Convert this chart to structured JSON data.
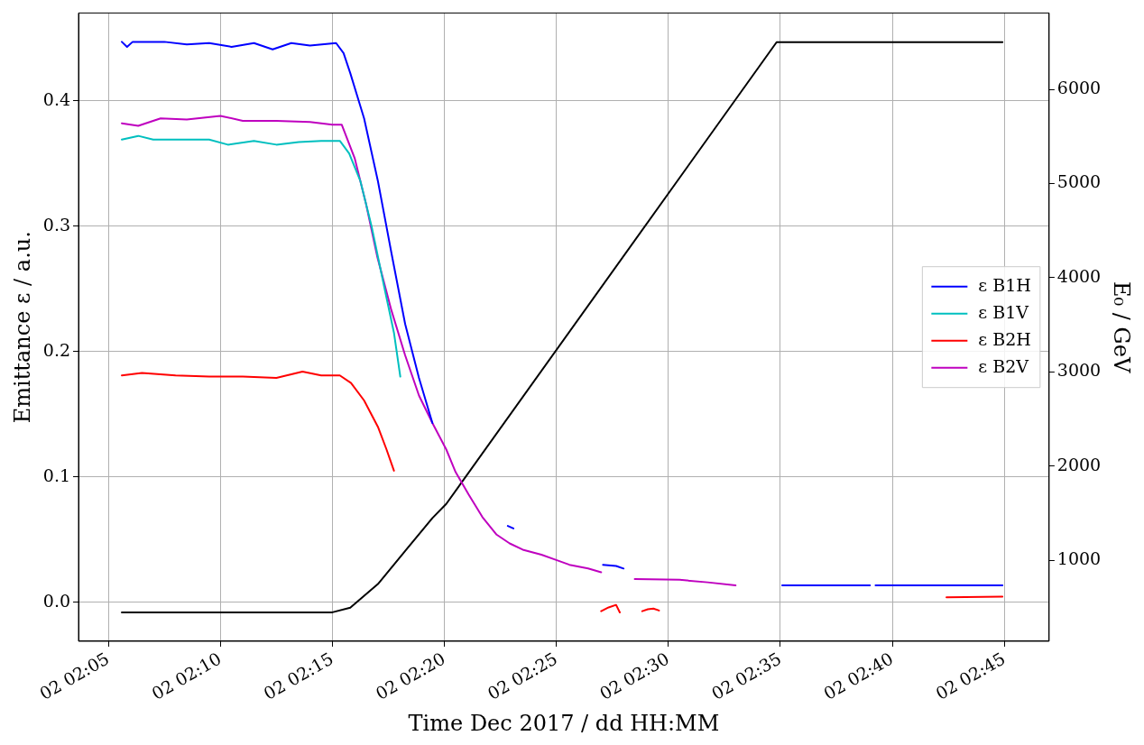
{
  "chart_data": {
    "type": "line",
    "xlabel": "Time Dec 2017 / dd HH:MM",
    "ylabel": "Emittance ε / a.u.",
    "y2label": "E₀ / GeV",
    "xlim": [
      "2017-12-02T02:03:40",
      "2017-12-02T02:47:00"
    ],
    "xticks": [
      {
        "value": "2017-12-02T02:05",
        "label": "02 02:05"
      },
      {
        "value": "2017-12-02T02:10",
        "label": "02 02:10"
      },
      {
        "value": "2017-12-02T02:15",
        "label": "02 02:15"
      },
      {
        "value": "2017-12-02T02:20",
        "label": "02 02:20"
      },
      {
        "value": "2017-12-02T02:25",
        "label": "02 02:25"
      },
      {
        "value": "2017-12-02T02:30",
        "label": "02 02:30"
      },
      {
        "value": "2017-12-02T02:35",
        "label": "02 02:35"
      },
      {
        "value": "2017-12-02T02:40",
        "label": "02 02:40"
      },
      {
        "value": "2017-12-02T02:45",
        "label": "02 02:45"
      }
    ],
    "ylim": [
      -0.031,
      0.47
    ],
    "yticks": [
      {
        "value": 0,
        "label": "0.0"
      },
      {
        "value": 0.1,
        "label": "0.1"
      },
      {
        "value": 0.2,
        "label": "0.2"
      },
      {
        "value": 0.3,
        "label": "0.3"
      },
      {
        "value": 0.4,
        "label": "0.4"
      }
    ],
    "y2lim": [
      143,
      6810
    ],
    "y2ticks": [
      1000,
      2000,
      3000,
      4000,
      5000,
      6000
    ],
    "grid": true,
    "legend": "right",
    "marker": "none",
    "series": [
      {
        "name": "ε B1H",
        "color": "#0000ff",
        "x": [
          "2017-12-02T02:05:36",
          "2017-12-02T02:05:50",
          "2017-12-02T02:06:05",
          "2017-12-02T02:07:30",
          "2017-12-02T02:08:30",
          "2017-12-02T02:09:30",
          "2017-12-02T02:10:30",
          "2017-12-02T02:11:30",
          "2017-12-02T02:12:20",
          "2017-12-02T02:13:10",
          "2017-12-02T02:14:00",
          "2017-12-02T02:15:10",
          "2017-12-02T02:15:30",
          "2017-12-02T02:15:48",
          "2017-12-02T02:16:25",
          "2017-12-02T02:17:02",
          "2017-12-02T02:17:38",
          "2017-12-02T02:18:15",
          "2017-12-02T02:18:52",
          "2017-12-02T02:19:28",
          "2017-12-02T02:21:00",
          "2017-12-02T02:22:50",
          "2017-12-02T02:23:05",
          "2017-12-02T02:25:00",
          "2017-12-02T02:27:05",
          "2017-12-02T02:27:40",
          "2017-12-02T02:28:00",
          "2017-12-02T02:31:00",
          "2017-12-02T02:35:05",
          "2017-12-02T02:39:00",
          "2017-12-02T02:39:05",
          "2017-12-02T02:39:15",
          "2017-12-02T02:44:55"
        ],
        "values": [
          0.447,
          0.443,
          0.447,
          0.447,
          0.445,
          0.446,
          0.443,
          0.446,
          0.441,
          0.446,
          0.444,
          0.446,
          0.438,
          0.422,
          0.386,
          0.336,
          0.279,
          0.222,
          0.179,
          0.143,
          null,
          0.061,
          0.059,
          null,
          0.03,
          0.029,
          0.027,
          null,
          0.0135,
          0.0135,
          null,
          0.0135,
          0.0135
        ]
      },
      {
        "name": "ε B1V",
        "color": "#00bfbf",
        "x": [
          "2017-12-02T02:05:36",
          "2017-12-02T02:06:20",
          "2017-12-02T02:07:00",
          "2017-12-02T02:08:00",
          "2017-12-02T02:09:30",
          "2017-12-02T02:10:20",
          "2017-12-02T02:11:30",
          "2017-12-02T02:12:30",
          "2017-12-02T02:13:30",
          "2017-12-02T02:14:30",
          "2017-12-02T02:15:20",
          "2017-12-02T02:15:45",
          "2017-12-02T02:16:15",
          "2017-12-02T02:16:45",
          "2017-12-02T02:17:20",
          "2017-12-02T02:17:45",
          "2017-12-02T02:18:02"
        ],
        "values": [
          0.369,
          0.372,
          0.369,
          0.369,
          0.369,
          0.365,
          0.368,
          0.365,
          0.367,
          0.368,
          0.368,
          0.358,
          0.336,
          0.3,
          0.25,
          0.215,
          0.18
        ]
      },
      {
        "name": "ε B2H",
        "color": "#ff0000",
        "x": [
          "2017-12-02T02:05:36",
          "2017-12-02T02:06:30",
          "2017-12-02T02:08:00",
          "2017-12-02T02:09:30",
          "2017-12-02T02:11:00",
          "2017-12-02T02:12:30",
          "2017-12-02T02:13:40",
          "2017-12-02T02:14:30",
          "2017-12-02T02:15:20",
          "2017-12-02T02:15:50",
          "2017-12-02T02:16:25",
          "2017-12-02T02:17:02",
          "2017-12-02T02:17:25",
          "2017-12-02T02:17:45",
          "2017-12-02T02:22:00",
          "2017-12-02T02:27:00",
          "2017-12-02T02:27:20",
          "2017-12-02T02:27:40",
          "2017-12-02T02:27:50",
          "2017-12-02T02:28:20",
          "2017-12-02T02:28:50",
          "2017-12-02T02:29:05",
          "2017-12-02T02:29:20",
          "2017-12-02T02:29:35",
          "2017-12-02T02:35:00",
          "2017-12-02T02:42:25",
          "2017-12-02T02:44:55"
        ],
        "values": [
          0.181,
          0.183,
          0.181,
          0.18,
          0.18,
          0.179,
          0.184,
          0.181,
          0.181,
          0.175,
          0.161,
          0.14,
          0.122,
          0.105,
          null,
          -0.007,
          -0.004,
          -0.002,
          -0.008,
          null,
          -0.007,
          -0.0055,
          -0.005,
          -0.0065,
          null,
          0.004,
          0.0045
        ]
      },
      {
        "name": "ε B2V",
        "color": "#bf00bf",
        "x": [
          "2017-12-02T02:05:36",
          "2017-12-02T02:06:20",
          "2017-12-02T02:07:20",
          "2017-12-02T02:08:30",
          "2017-12-02T02:10:00",
          "2017-12-02T02:11:00",
          "2017-12-02T02:12:30",
          "2017-12-02T02:14:00",
          "2017-12-02T02:15:00",
          "2017-12-02T02:15:25",
          "2017-12-02T02:16:00",
          "2017-12-02T02:16:30",
          "2017-12-02T02:17:00",
          "2017-12-02T02:17:38",
          "2017-12-02T02:18:15",
          "2017-12-02T02:18:52",
          "2017-12-02T02:19:28",
          "2017-12-02T02:20:05",
          "2017-12-02T02:20:30",
          "2017-12-02T02:21:05",
          "2017-12-02T02:21:42",
          "2017-12-02T02:22:20",
          "2017-12-02T02:22:55",
          "2017-12-02T02:23:30",
          "2017-12-02T02:24:20",
          "2017-12-02T02:24:58",
          "2017-12-02T02:25:35",
          "2017-12-02T02:26:25",
          "2017-12-02T02:27:00",
          "2017-12-02T02:27:50",
          "2017-12-02T02:28:30",
          "2017-12-02T02:30:30",
          "2017-12-02T02:31:45",
          "2017-12-02T02:33:00"
        ],
        "values": [
          0.382,
          0.38,
          0.386,
          0.385,
          0.388,
          0.384,
          0.384,
          0.383,
          0.381,
          0.381,
          0.354,
          0.318,
          0.276,
          0.233,
          0.197,
          0.165,
          0.143,
          0.122,
          0.104,
          0.086,
          0.068,
          0.054,
          0.047,
          0.042,
          0.038,
          0.034,
          0.03,
          0.027,
          0.024,
          null,
          0.0186,
          0.018,
          0.016,
          0.0135
        ]
      },
      {
        "color": "#000000",
        "axis": "y2",
        "x": [
          "2017-12-02T02:05:36",
          "2017-12-02T02:15:00",
          "2017-12-02T02:15:48",
          "2017-12-02T02:17:02",
          "2017-12-02T02:18:15",
          "2017-12-02T02:19:28",
          "2017-12-02T02:20:05",
          "2017-12-02T02:34:50",
          "2017-12-02T02:35:00",
          "2017-12-02T02:44:55"
        ],
        "values": [
          450,
          450,
          500,
          750,
          1100,
          1450,
          1600,
          6500,
          6500,
          6500
        ]
      }
    ]
  }
}
